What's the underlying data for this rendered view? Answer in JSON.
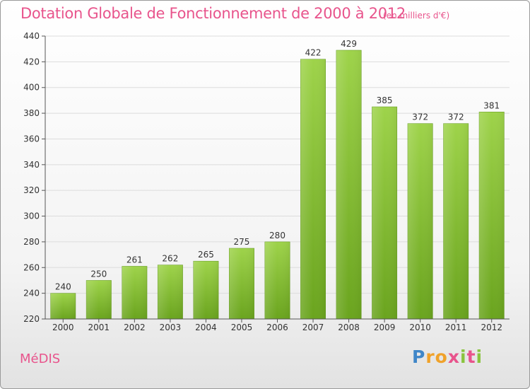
{
  "header": {
    "title": "Dotation Globale de Fonctionnement de 2000 à 2012",
    "unit": "(en milliers d'€)"
  },
  "footer": {
    "commune": "MéDIS",
    "logo": {
      "letters": [
        "P",
        "r",
        "o",
        "x",
        "i",
        "t",
        "i"
      ],
      "colors": [
        "#3f86c8",
        "#f0a22a",
        "#f0a22a",
        "#e8548c",
        "#8ac43f",
        "#e8548c",
        "#8ac43f"
      ]
    }
  },
  "colors": {
    "bar_light": "#9ed34a",
    "bar_dark": "#6aa41e",
    "grid": "#dcdcdc",
    "axis": "#555555",
    "text": "#333333",
    "accent": "#e8548c"
  },
  "chart_data": {
    "type": "bar",
    "categories": [
      "2000",
      "2001",
      "2002",
      "2003",
      "2004",
      "2005",
      "2006",
      "2007",
      "2008",
      "2009",
      "2010",
      "2011",
      "2012"
    ],
    "values": [
      240,
      250,
      261,
      262,
      265,
      275,
      280,
      422,
      429,
      385,
      372,
      372,
      381
    ],
    "ylim": [
      220,
      440
    ],
    "yticks": [
      220,
      240,
      260,
      280,
      300,
      320,
      340,
      360,
      380,
      400,
      420,
      440
    ],
    "grid": true,
    "data_labels": true
  }
}
